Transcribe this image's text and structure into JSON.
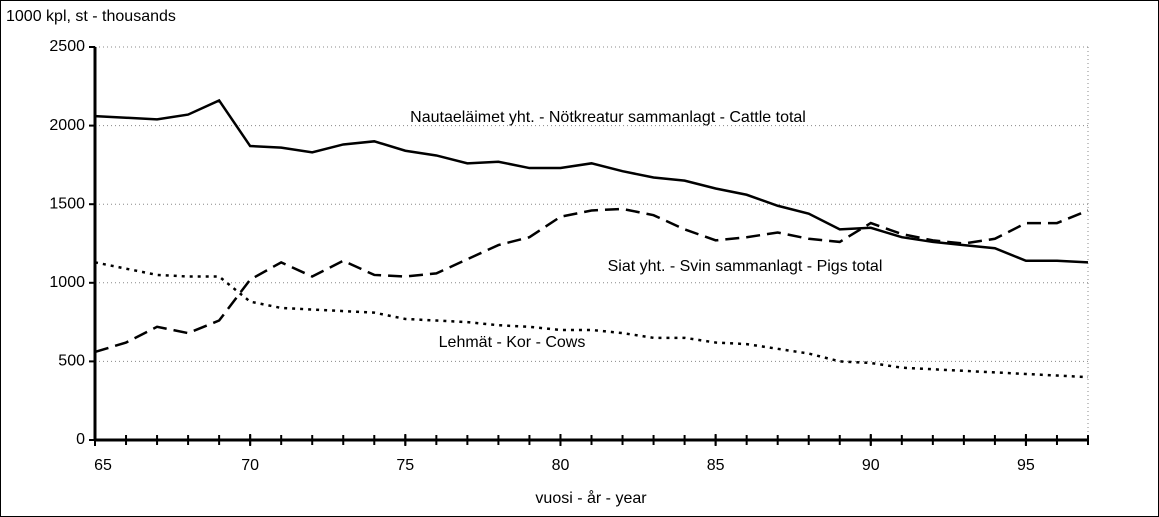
{
  "chart_data": {
    "type": "line",
    "ylabel": "1000 kpl, st - thousands",
    "xlabel": "vuosi - år - year",
    "x": [
      65,
      66,
      67,
      68,
      69,
      70,
      71,
      72,
      73,
      74,
      75,
      76,
      77,
      78,
      79,
      80,
      81,
      82,
      83,
      84,
      85,
      86,
      87,
      88,
      89,
      90,
      91,
      92,
      93,
      94,
      95,
      96,
      97
    ],
    "series": [
      {
        "name": "Nautaeläimet yht. - Nötkreatur sammanlagt - Cattle total",
        "color": "#000000",
        "dash": "solid",
        "values": [
          2060,
          2050,
          2040,
          2070,
          2160,
          1870,
          1860,
          1830,
          1880,
          1900,
          1840,
          1810,
          1760,
          1770,
          1730,
          1730,
          1760,
          1710,
          1670,
          1650,
          1600,
          1560,
          1490,
          1440,
          1340,
          1350,
          1290,
          1260,
          1240,
          1220,
          1140,
          1140,
          1130
        ]
      },
      {
        "name": "Siat yht. - Svin sammanlagt - Pigs total",
        "color": "#000000",
        "dash": "dashed",
        "values": [
          560,
          620,
          720,
          680,
          760,
          1020,
          1130,
          1040,
          1140,
          1050,
          1040,
          1060,
          1150,
          1240,
          1290,
          1420,
          1460,
          1470,
          1430,
          1340,
          1270,
          1290,
          1320,
          1280,
          1260,
          1380,
          1310,
          1270,
          1250,
          1280,
          1380,
          1380,
          1460
        ]
      },
      {
        "name": "Lehmät - Kor - Cows",
        "color": "#000000",
        "dash": "dotted",
        "values": [
          1130,
          1090,
          1050,
          1040,
          1040,
          880,
          840,
          830,
          820,
          810,
          770,
          760,
          750,
          730,
          720,
          700,
          700,
          680,
          650,
          650,
          620,
          610,
          580,
          550,
          500,
          490,
          460,
          450,
          440,
          430,
          420,
          410,
          400
        ]
      }
    ],
    "xlim": [
      65,
      97
    ],
    "xticks": [
      65,
      70,
      75,
      80,
      85,
      90,
      95
    ],
    "ylim": [
      0,
      2500
    ],
    "yticks": [
      0,
      500,
      1000,
      1500,
      2000,
      2500
    ],
    "grid": true
  }
}
